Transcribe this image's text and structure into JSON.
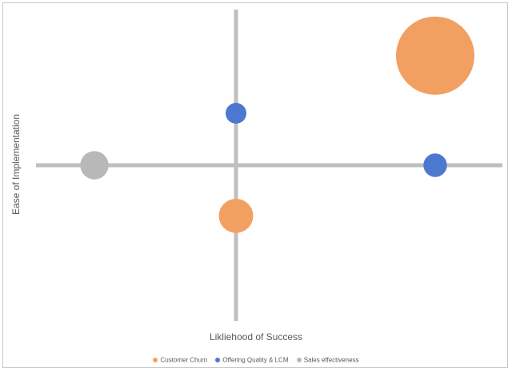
{
  "chart_data": {
    "type": "bubble",
    "xlabel": "Likliehood of Success",
    "ylabel": "Ease of Implementation",
    "xlim": [
      -10,
      10
    ],
    "ylim": [
      -10,
      10
    ],
    "axes": "cross-at-origin",
    "grid": false,
    "legend_position": "bottom",
    "series": [
      {
        "name": "Customer Churn",
        "color": "#f2a061",
        "points": [
          {
            "x": 8.3,
            "y": 7.8,
            "size": 100
          },
          {
            "x": 0.0,
            "y": -3.6,
            "size": 19
          }
        ]
      },
      {
        "name": "Offering Quality & LCM",
        "color": "#4c78d0",
        "points": [
          {
            "x": 0.0,
            "y": 3.7,
            "size": 7
          },
          {
            "x": 8.3,
            "y": 0.0,
            "size": 9
          }
        ]
      },
      {
        "name": "Sales effectiveness",
        "color": "#b8b8b8",
        "points": [
          {
            "x": -5.9,
            "y": 0.0,
            "size": 13
          }
        ]
      }
    ]
  }
}
